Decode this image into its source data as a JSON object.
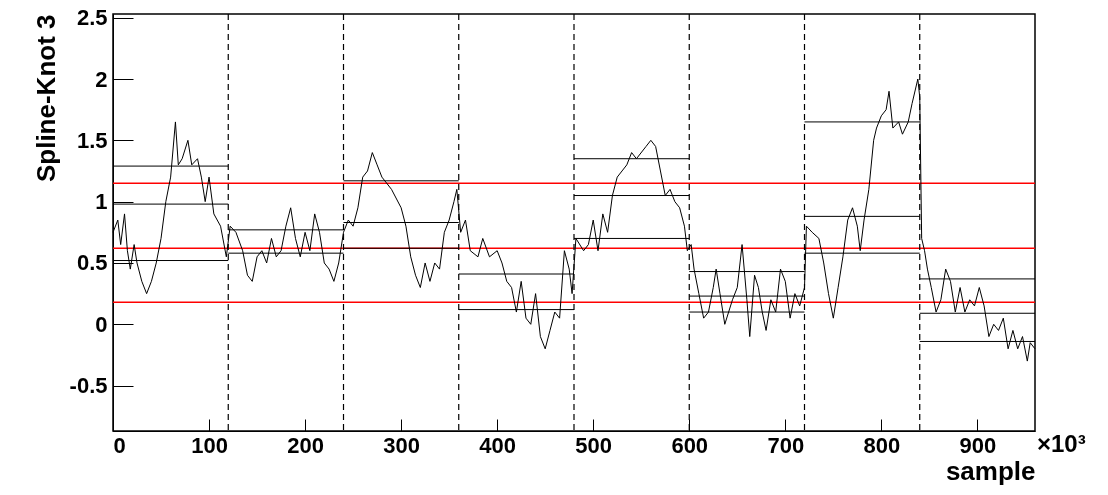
{
  "chart_data": {
    "type": "line",
    "xlabel": "sample",
    "ylabel": "Spline-Knot 3",
    "xlim": [
      0,
      960
    ],
    "ylim": [
      -0.87,
      2.53
    ],
    "xticks": [
      0,
      100,
      200,
      300,
      400,
      500,
      600,
      700,
      800,
      900
    ],
    "yticks": [
      -0.5,
      0,
      0.5,
      1,
      1.5,
      2,
      2.5
    ],
    "grid": false,
    "marker": "none",
    "annotations": [
      "×10³"
    ],
    "series": [
      {
        "color": "#000000",
        "x": [
          0,
          5,
          8,
          12,
          15,
          18,
          22,
          25,
          30,
          35,
          40,
          45,
          50,
          55,
          60,
          65,
          68,
          72,
          78,
          82,
          88,
          92,
          96,
          100,
          105,
          112,
          118,
          122,
          128,
          135,
          140,
          145,
          150,
          155,
          160,
          165,
          170,
          175,
          180,
          185,
          190,
          195,
          200,
          205,
          210,
          215,
          220,
          225,
          230,
          235,
          240,
          245,
          250,
          255,
          260,
          265,
          270,
          275,
          280,
          290,
          300,
          305,
          310,
          315,
          320,
          325,
          330,
          335,
          340,
          345,
          350,
          355,
          358,
          362,
          367,
          372,
          380,
          385,
          392,
          400,
          405,
          410,
          415,
          420,
          425,
          430,
          435,
          440,
          445,
          450,
          455,
          460,
          465,
          470,
          475,
          478,
          482,
          490,
          495,
          500,
          505,
          510,
          515,
          520,
          525,
          530,
          535,
          540,
          545,
          555,
          560,
          565,
          570,
          575,
          580,
          585,
          590,
          595,
          598,
          602,
          605,
          610,
          615,
          620,
          625,
          628,
          632,
          637,
          645,
          650,
          655,
          660,
          663,
          668,
          672,
          676,
          680,
          685,
          690,
          695,
          700,
          705,
          710,
          715,
          720,
          722,
          728,
          735,
          740,
          745,
          750,
          755,
          760,
          765,
          770,
          775,
          778,
          782,
          787,
          792,
          795,
          800,
          805,
          808,
          812,
          818,
          822,
          828,
          832,
          838,
          840,
          842,
          845,
          848,
          852,
          857,
          862,
          867,
          872,
          877,
          882,
          887,
          892,
          897,
          902,
          907,
          912,
          917,
          922,
          927,
          932,
          937,
          942,
          947,
          952,
          955,
          960
        ],
        "values": [
          0.75,
          0.85,
          0.65,
          0.9,
          0.6,
          0.45,
          0.65,
          0.5,
          0.35,
          0.25,
          0.35,
          0.5,
          0.7,
          1.0,
          1.2,
          1.65,
          1.3,
          1.35,
          1.5,
          1.3,
          1.35,
          1.2,
          1.0,
          1.2,
          0.9,
          0.8,
          0.55,
          0.8,
          0.75,
          0.6,
          0.4,
          0.35,
          0.55,
          0.6,
          0.5,
          0.7,
          0.55,
          0.6,
          0.8,
          0.95,
          0.7,
          0.55,
          0.75,
          0.6,
          0.9,
          0.75,
          0.5,
          0.45,
          0.35,
          0.5,
          0.75,
          0.85,
          0.8,
          0.95,
          1.2,
          1.25,
          1.4,
          1.3,
          1.2,
          1.1,
          0.95,
          0.8,
          0.55,
          0.4,
          0.3,
          0.5,
          0.35,
          0.5,
          0.45,
          0.75,
          0.85,
          1.0,
          1.1,
          0.75,
          0.85,
          0.6,
          0.55,
          0.7,
          0.55,
          0.6,
          0.5,
          0.35,
          0.3,
          0.1,
          0.35,
          0.05,
          0.0,
          0.25,
          -0.1,
          -0.2,
          -0.05,
          0.1,
          0.05,
          0.6,
          0.45,
          0.25,
          0.7,
          0.6,
          0.65,
          0.85,
          0.6,
          0.9,
          0.75,
          1.05,
          1.2,
          1.25,
          1.3,
          1.4,
          1.35,
          1.45,
          1.5,
          1.45,
          1.25,
          1.05,
          1.1,
          1.0,
          0.95,
          0.8,
          0.6,
          0.65,
          0.45,
          0.25,
          0.05,
          0.1,
          0.3,
          0.45,
          0.25,
          0.0,
          0.2,
          0.3,
          0.65,
          0.2,
          -0.1,
          0.4,
          0.3,
          0.1,
          -0.05,
          0.2,
          0.1,
          0.45,
          0.35,
          0.05,
          0.25,
          0.15,
          0.3,
          0.8,
          0.75,
          0.7,
          0.5,
          0.25,
          0.05,
          0.3,
          0.55,
          0.85,
          0.95,
          0.8,
          0.6,
          0.85,
          1.1,
          1.5,
          1.6,
          1.7,
          1.75,
          1.9,
          1.6,
          1.65,
          1.55,
          1.65,
          1.8,
          2.0,
          1.85,
          0.7,
          0.6,
          0.45,
          0.3,
          0.1,
          0.2,
          0.45,
          0.35,
          0.1,
          0.3,
          0.1,
          0.2,
          0.15,
          0.3,
          0.15,
          -0.1,
          0.0,
          -0.05,
          0.05,
          -0.2,
          -0.05,
          -0.2,
          -0.1,
          -0.3,
          -0.15,
          -0.2
        ]
      },
      {
        "color": "#000000",
        "x": [
          0,
          120
        ],
        "values": [
          1.29,
          1.29
        ]
      },
      {
        "color": "#000000",
        "x": [
          0,
          120
        ],
        "values": [
          0.98,
          0.98
        ]
      },
      {
        "color": "#000000",
        "x": [
          0,
          120
        ],
        "values": [
          0.52,
          0.52
        ]
      },
      {
        "color": "#000000",
        "x": [
          120,
          240
        ],
        "values": [
          0.77,
          0.77
        ]
      },
      {
        "color": "#000000",
        "x": [
          120,
          240
        ],
        "values": [
          0.58,
          0.58
        ]
      },
      {
        "color": "#000000",
        "x": [
          240,
          360
        ],
        "values": [
          1.17,
          1.17
        ]
      },
      {
        "color": "#000000",
        "x": [
          240,
          360
        ],
        "values": [
          0.83,
          0.83
        ]
      },
      {
        "color": "#000000",
        "x": [
          240,
          360
        ],
        "values": [
          0.62,
          0.62
        ]
      },
      {
        "color": "#000000",
        "x": [
          360,
          480
        ],
        "values": [
          0.41,
          0.41
        ]
      },
      {
        "color": "#000000",
        "x": [
          360,
          480
        ],
        "values": [
          0.12,
          0.12
        ]
      },
      {
        "color": "#000000",
        "x": [
          480,
          600
        ],
        "values": [
          1.35,
          1.35
        ]
      },
      {
        "color": "#000000",
        "x": [
          480,
          600
        ],
        "values": [
          1.05,
          1.05
        ]
      },
      {
        "color": "#000000",
        "x": [
          480,
          600
        ],
        "values": [
          0.7,
          0.7
        ]
      },
      {
        "color": "#000000",
        "x": [
          600,
          720
        ],
        "values": [
          0.43,
          0.43
        ]
      },
      {
        "color": "#000000",
        "x": [
          600,
          720
        ],
        "values": [
          0.23,
          0.23
        ]
      },
      {
        "color": "#000000",
        "x": [
          600,
          720
        ],
        "values": [
          0.1,
          0.1
        ]
      },
      {
        "color": "#000000",
        "x": [
          720,
          840
        ],
        "values": [
          1.65,
          1.65
        ]
      },
      {
        "color": "#000000",
        "x": [
          720,
          840
        ],
        "values": [
          0.88,
          0.88
        ]
      },
      {
        "color": "#000000",
        "x": [
          720,
          840
        ],
        "values": [
          0.58,
          0.58
        ]
      },
      {
        "color": "#000000",
        "x": [
          840,
          960
        ],
        "values": [
          0.37,
          0.37
        ]
      },
      {
        "color": "#000000",
        "x": [
          840,
          960
        ],
        "values": [
          0.09,
          0.09
        ]
      },
      {
        "color": "#000000",
        "x": [
          840,
          960
        ],
        "values": [
          -0.14,
          -0.14
        ]
      }
    ],
    "ref_lines": [
      {
        "axis": "y",
        "value": 1.15,
        "color": "#ff0000"
      },
      {
        "axis": "y",
        "value": 0.62,
        "color": "#ff0000"
      },
      {
        "axis": "y",
        "value": 0.18,
        "color": "#ff0000"
      },
      {
        "axis": "x",
        "value": 120,
        "line_style": "dashed",
        "color": "#000000"
      },
      {
        "axis": "x",
        "value": 240,
        "line_style": "dashed",
        "color": "#000000"
      },
      {
        "axis": "x",
        "value": 360,
        "line_style": "dashed",
        "color": "#000000"
      },
      {
        "axis": "x",
        "value": 480,
        "line_style": "dashed",
        "color": "#000000"
      },
      {
        "axis": "x",
        "value": 600,
        "line_style": "dashed",
        "color": "#000000"
      },
      {
        "axis": "x",
        "value": 720,
        "line_style": "dashed",
        "color": "#000000"
      },
      {
        "axis": "x",
        "value": 840,
        "line_style": "dashed",
        "color": "#000000"
      }
    ]
  }
}
